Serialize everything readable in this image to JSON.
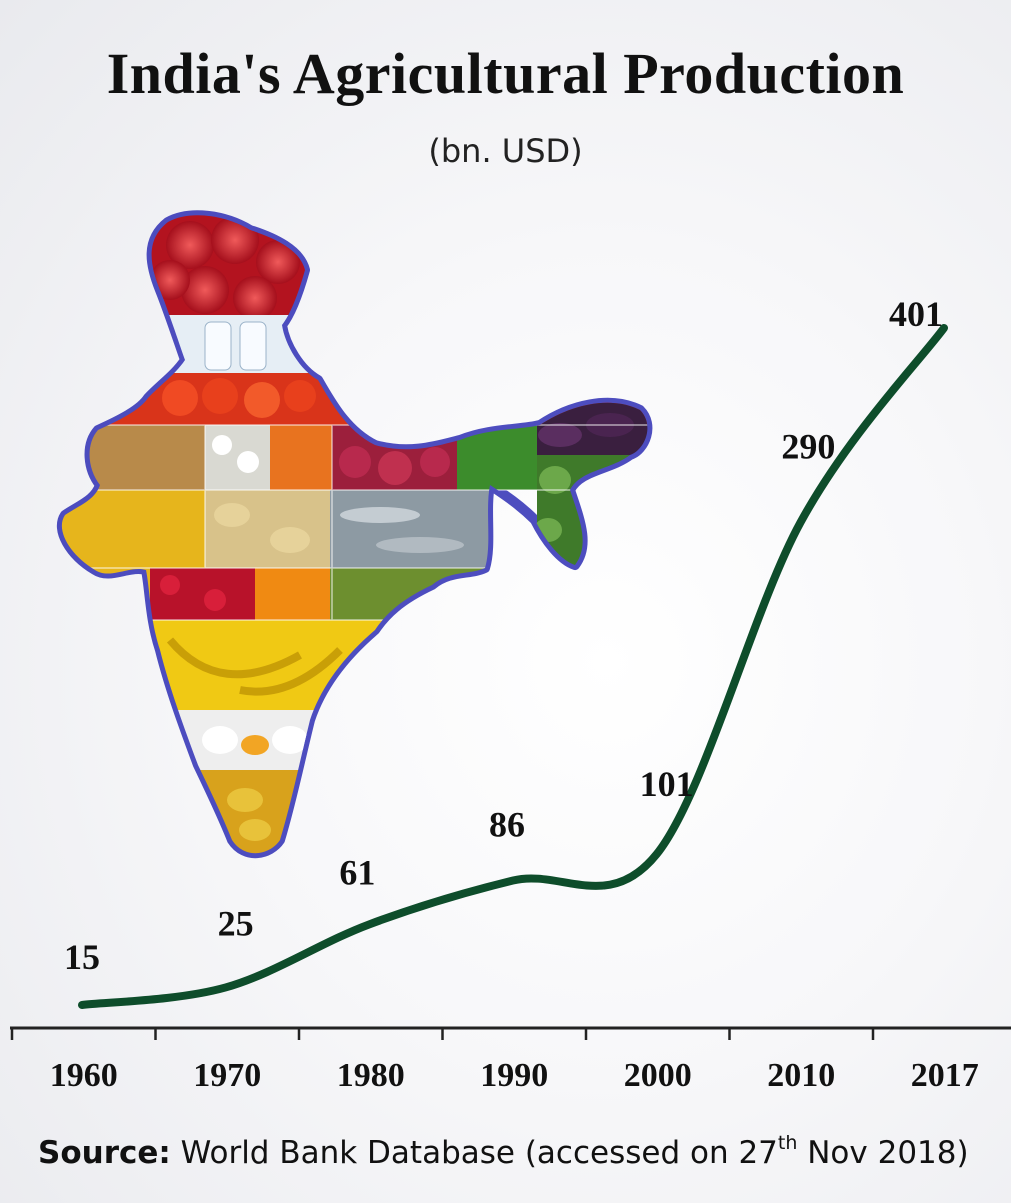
{
  "title": "India's Agricultural Production",
  "subtitle": "(bn. USD)",
  "chart_data": {
    "type": "line",
    "title": "India's Agricultural Production",
    "subtitle": "(bn. USD)",
    "categories": [
      "1960",
      "1970",
      "1980",
      "1990",
      "2000",
      "2010",
      "2017"
    ],
    "values": [
      15,
      25,
      61,
      86,
      101,
      290,
      401
    ],
    "xlabel": "",
    "ylabel": "",
    "grid": false,
    "legend": "none",
    "line_color": "#0e4d2b"
  },
  "source": {
    "label": "Source:",
    "text": "World Bank Database  (accessed on 27",
    "superscript": "th",
    "text_end": " Nov 2018)"
  },
  "decoration": {
    "map_fill_items": [
      "apples",
      "milk bottles",
      "tomatoes",
      "wheat",
      "cotton",
      "carrots",
      "onions",
      "spinach",
      "brinjal",
      "maize",
      "potatoes",
      "fish",
      "watermelons",
      "roses",
      "marigolds",
      "rice",
      "bananas",
      "eggs",
      "mangoes"
    ]
  }
}
